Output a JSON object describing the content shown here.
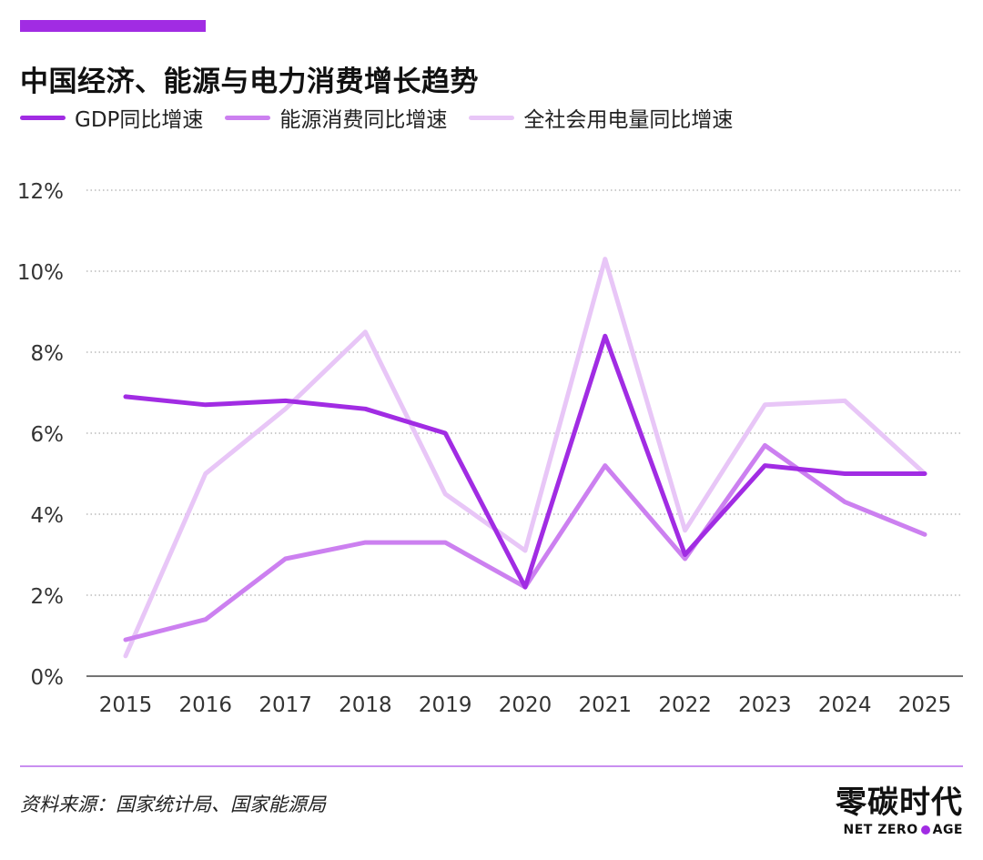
{
  "title": "中国经济、能源与电力消费增长趋势",
  "source": "资料来源：国家统计局、国家能源局",
  "brand": {
    "cn": "零碳时代",
    "en_before": "NET ZERO",
    "en_after": "AGE",
    "dot_color": "#a12ce3"
  },
  "colors": {
    "accent": "#a12ce3",
    "rule": "#c98ff0",
    "grid": "#9a9a9a"
  },
  "chart_data": {
    "type": "line",
    "title": "中国经济、能源与电力消费增长趋势",
    "xlabel": "",
    "ylabel": "",
    "categories": [
      "2015",
      "2016",
      "2017",
      "2018",
      "2019",
      "2020",
      "2021",
      "2022",
      "2023",
      "2024",
      "2025"
    ],
    "ylim": [
      0,
      12
    ],
    "yticks": [
      0,
      2,
      4,
      6,
      8,
      10,
      12
    ],
    "ytick_labels": [
      "0%",
      "2%",
      "4%",
      "6%",
      "8%",
      "10%",
      "12%"
    ],
    "grid": "horizontal dotted",
    "legend_position": "top-left",
    "series": [
      {
        "name": "GDP同比增速",
        "color": "#a12ce3",
        "values": [
          6.9,
          6.7,
          6.8,
          6.6,
          6.0,
          2.2,
          8.4,
          3.0,
          5.2,
          5.0,
          5.0
        ]
      },
      {
        "name": "能源消费同比增速",
        "color": "#cc80f0",
        "values": [
          0.9,
          1.4,
          2.9,
          3.3,
          3.3,
          2.2,
          5.2,
          2.9,
          5.7,
          4.3,
          3.5
        ]
      },
      {
        "name": "全社会用电量同比增速",
        "color": "#e8c6f7",
        "values": [
          0.5,
          5.0,
          6.6,
          8.5,
          4.5,
          3.1,
          10.3,
          3.6,
          6.7,
          6.8,
          5.0
        ]
      }
    ]
  }
}
